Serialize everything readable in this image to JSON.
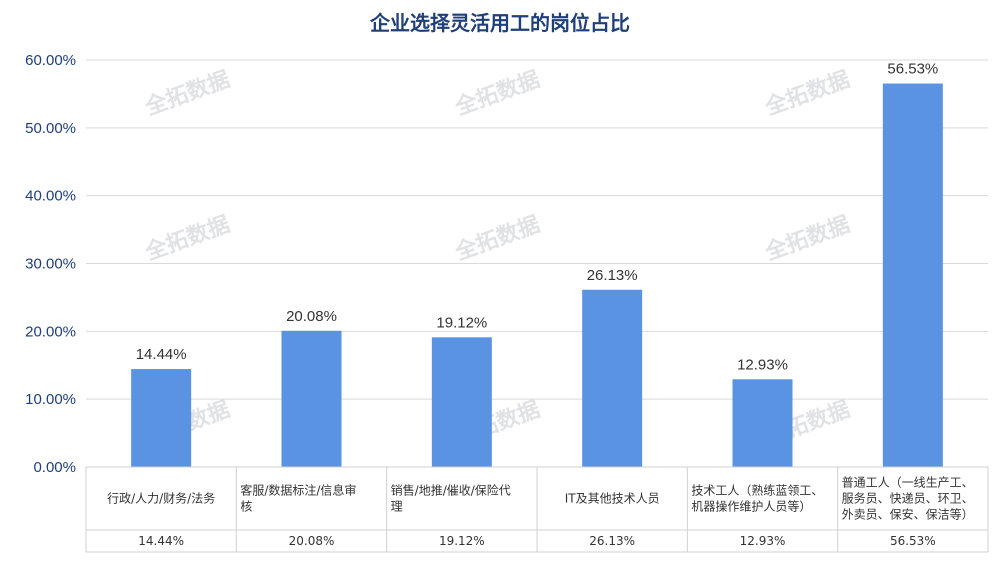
{
  "chart_data": {
    "type": "bar",
    "title": "企业选择灵活用工的岗位占比",
    "categories": [
      [
        "行政/人力/财务/法务"
      ],
      [
        "客服/数据标注/信息审",
        "核"
      ],
      [
        "销售/地推/催收/保险代",
        "理"
      ],
      [
        "IT及其他技术人员"
      ],
      [
        "技术工人（熟练蓝领工、",
        "机器操作维护人员等）"
      ],
      [
        "普通工人（一线生产工、",
        "服务员、快递员、环卫、",
        "外卖员、保安、保洁等）"
      ]
    ],
    "values": [
      14.44,
      20.08,
      19.12,
      26.13,
      12.93,
      56.53
    ],
    "value_labels": [
      "14.44%",
      "20.08%",
      "19.12%",
      "26.13%",
      "12.93%",
      "56.53%"
    ],
    "yticks": [
      "0.00%",
      "10.00%",
      "20.00%",
      "30.00%",
      "40.00%",
      "50.00%",
      "60.00%"
    ],
    "ylim": [
      0,
      60
    ],
    "bar_color": "#5b93e3",
    "grid": true,
    "data_table": true
  },
  "watermark": "全拓数据"
}
